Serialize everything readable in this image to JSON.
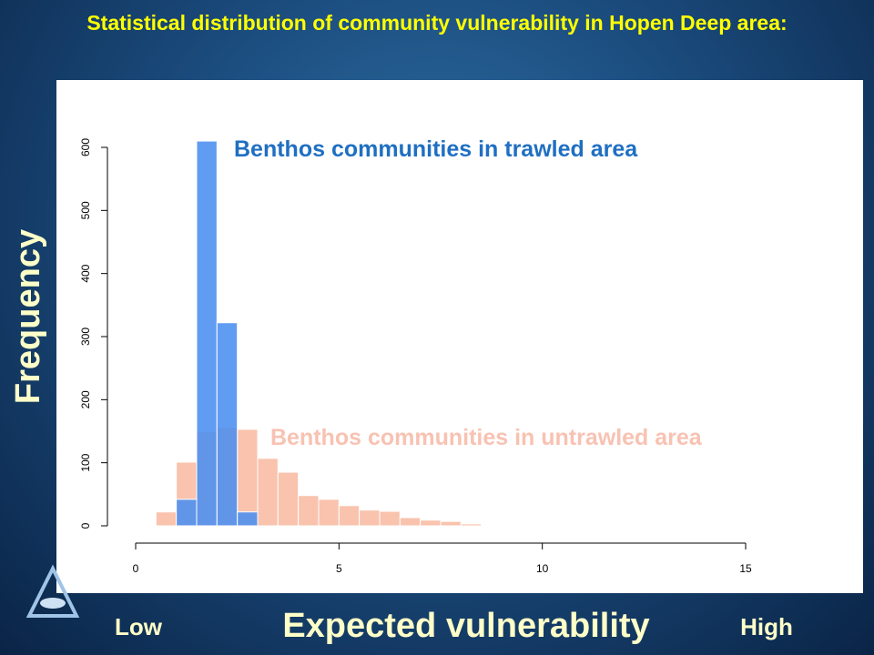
{
  "chart_data": {
    "type": "histogram",
    "title": "Statistical distribution of community vulnerability in Hopen Deep area:",
    "x_label": "Expected vulnerability",
    "y_label": "Frequency",
    "x_low_label": "Low",
    "x_high_label": "High",
    "bins": [
      0.5,
      1.0,
      1.5,
      2.0,
      2.5,
      3.0,
      3.5,
      4.0,
      4.5,
      5.0,
      5.5,
      6.0,
      6.5,
      7.0,
      7.5,
      8.0,
      8.5,
      9.0,
      9.5
    ],
    "series": [
      {
        "name": "Benthos communities in untrawled area",
        "color": "#f9c3ae",
        "values": [
          22,
          101,
          149,
          156,
          153,
          107,
          85,
          48,
          42,
          32,
          25,
          23,
          13,
          9,
          7,
          3,
          0,
          1
        ]
      },
      {
        "name": "Benthos communities in trawled area",
        "color": "#4a8ef0",
        "values": [
          0,
          42,
          610,
          322,
          22,
          0,
          0,
          0,
          0,
          0,
          0,
          0,
          0,
          0,
          0,
          0,
          0,
          0
        ]
      }
    ],
    "xlim": [
      0,
      15
    ],
    "xticks": [
      0,
      5,
      10,
      15
    ],
    "ylim": [
      0,
      600
    ],
    "yticks": [
      0,
      100,
      200,
      300,
      400,
      500,
      600
    ]
  }
}
